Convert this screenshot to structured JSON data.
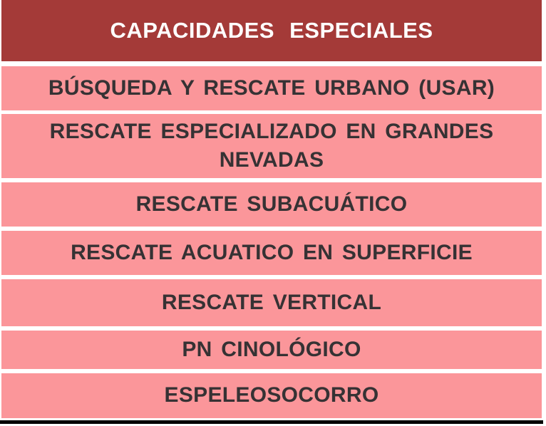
{
  "table": {
    "header_title": "CAPACIDADES ESPECIALES",
    "rows": [
      {
        "label": "BÚSQUEDA Y RESCATE URBANO (USAR)"
      },
      {
        "label": "RESCATE ESPECIALIZADO EN GRANDES NEVADAS"
      },
      {
        "label": "RESCATE SUBACUÁTICO"
      },
      {
        "label": "RESCATE ACUATICO EN SUPERFICIE"
      },
      {
        "label": "RESCATE VERTICAL"
      },
      {
        "label": "PN CINOLÓGICO"
      },
      {
        "label": "ESPELEOSOCORRO"
      }
    ]
  },
  "colors": {
    "header_bg": "#A43A38",
    "header_text": "#FFFFFF",
    "row_bg": "#FB969A",
    "row_text": "#363234",
    "separator": "#FFFFFF",
    "bottom_bar": "#000000"
  }
}
